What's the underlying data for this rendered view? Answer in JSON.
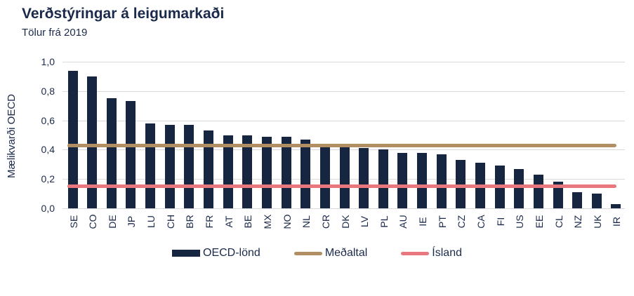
{
  "header": {
    "title": "Verðstýringar á leigumarkaði",
    "subtitle": "Tölur frá 2019"
  },
  "colors": {
    "bar": "#162540",
    "average_line": "#b28f63",
    "iceland_line": "#e8787d",
    "gridline": "#dadada",
    "text": "#1b2a4a"
  },
  "chart_data": {
    "type": "bar",
    "title": "Verðstýringar á leigumarkaði",
    "subtitle": "Tölur frá 2019",
    "xlabel": "",
    "ylabel": "Mælikvarði OECD",
    "ylim": [
      0,
      1.0
    ],
    "grid": true,
    "legend_position": "bottom",
    "yticks": [
      {
        "value": 0.0,
        "label": "0,0"
      },
      {
        "value": 0.2,
        "label": "0,2"
      },
      {
        "value": 0.4,
        "label": "0,4"
      },
      {
        "value": 0.6,
        "label": "0,6"
      },
      {
        "value": 0.8,
        "label": "0,8"
      },
      {
        "value": 1.0,
        "label": "1,0"
      }
    ],
    "categories": [
      "SE",
      "CO",
      "DE",
      "JP",
      "LU",
      "CH",
      "BR",
      "FR",
      "AT",
      "BE",
      "MX",
      "NO",
      "NL",
      "CR",
      "DK",
      "LV",
      "PL",
      "AU",
      "IE",
      "PT",
      "CZ",
      "CA",
      "FI",
      "US",
      "EE",
      "CL",
      "NZ",
      "UK",
      "IR"
    ],
    "series": [
      {
        "name": "OECD-lönd",
        "type": "bar",
        "color": "#162540",
        "values": [
          0.94,
          0.9,
          0.75,
          0.73,
          0.58,
          0.57,
          0.57,
          0.53,
          0.5,
          0.5,
          0.49,
          0.49,
          0.47,
          0.43,
          0.42,
          0.41,
          0.4,
          0.38,
          0.38,
          0.37,
          0.33,
          0.31,
          0.29,
          0.27,
          0.23,
          0.18,
          0.11,
          0.1,
          0.03
        ]
      },
      {
        "name": "Meðaltal",
        "type": "line",
        "color": "#b28f63",
        "value": 0.43
      },
      {
        "name": "Ísland",
        "type": "line",
        "color": "#e8787d",
        "value": 0.15
      }
    ]
  }
}
